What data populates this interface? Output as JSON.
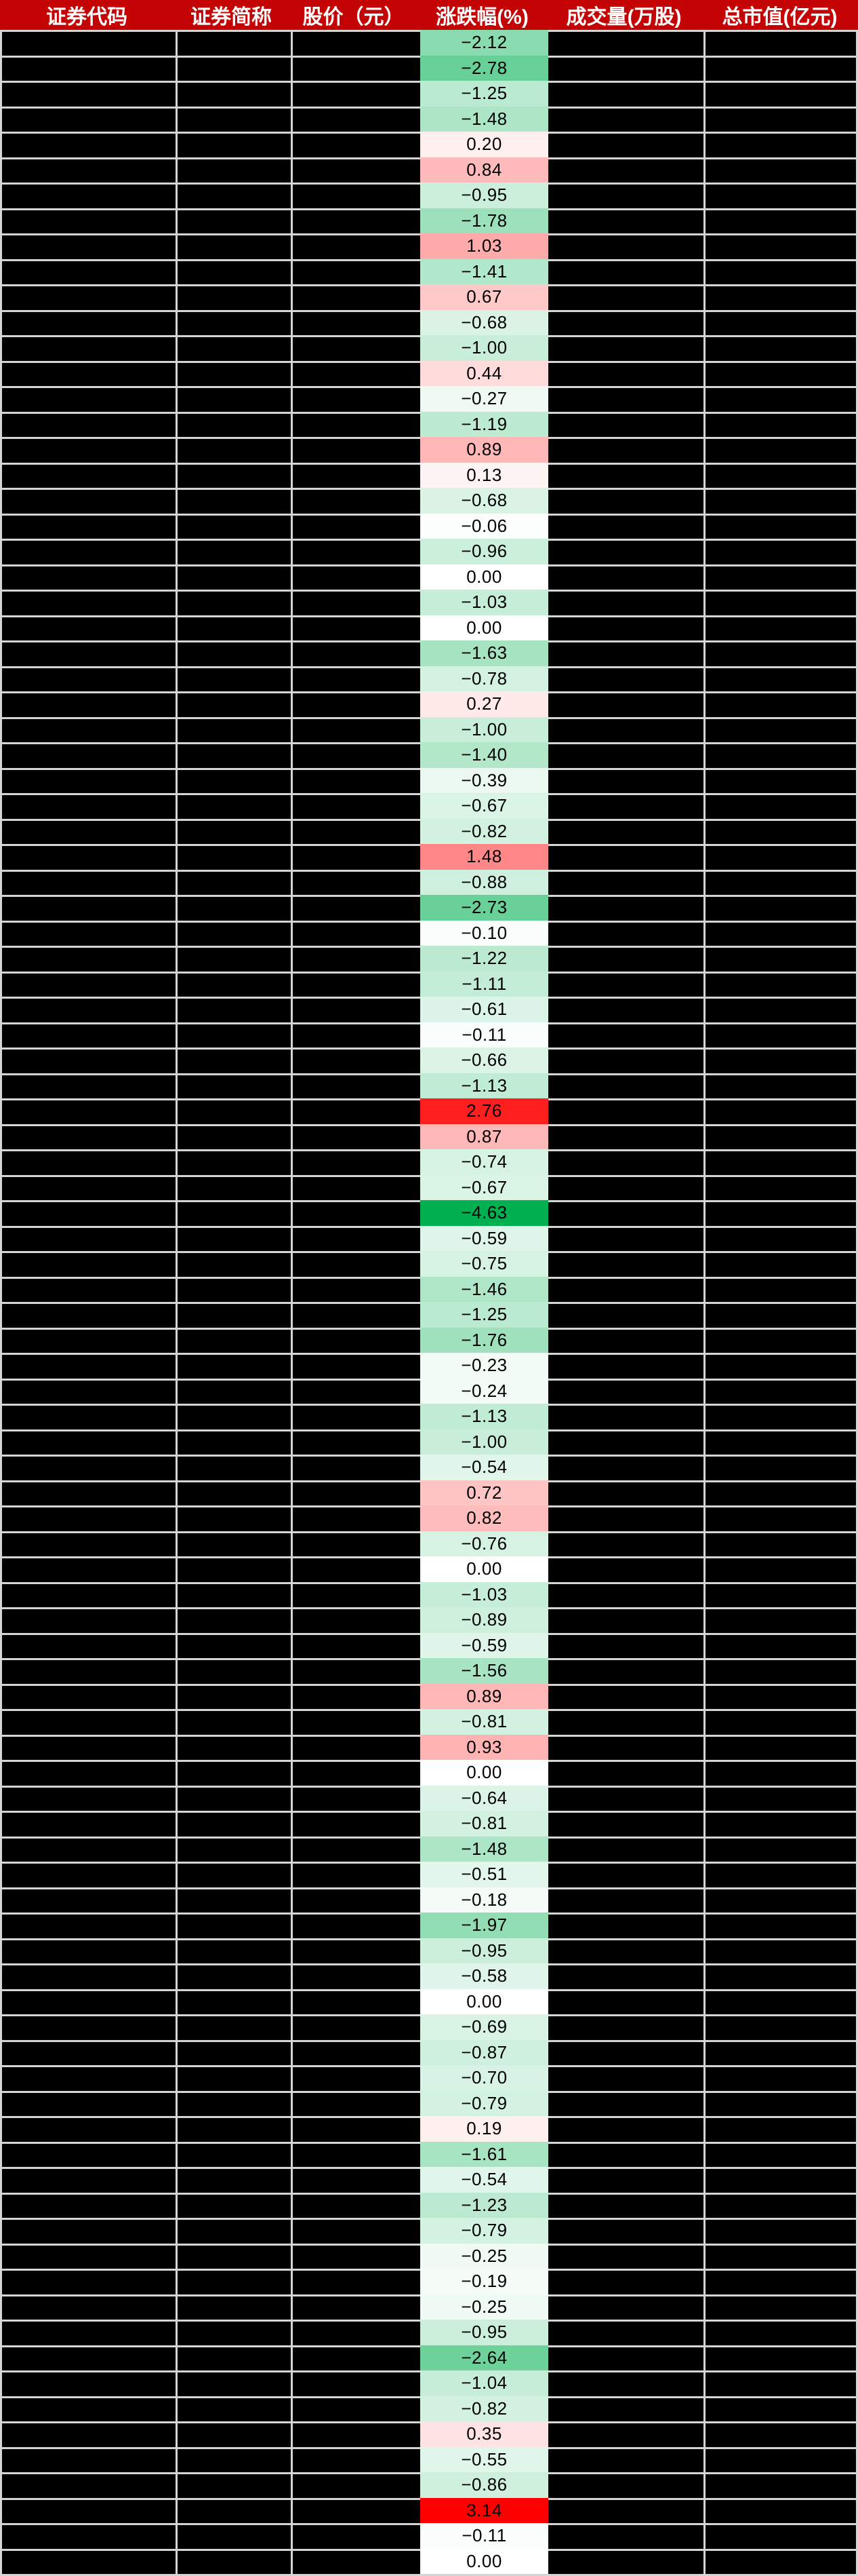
{
  "table": {
    "columns": [
      {
        "key": "code",
        "label": "证券代码"
      },
      {
        "key": "name",
        "label": "证券简称"
      },
      {
        "key": "price",
        "label": "股价（元）"
      },
      {
        "key": "pct_change",
        "label": "涨跌幅(%)"
      },
      {
        "key": "volume",
        "label": "成交量(万股)"
      },
      {
        "key": "market_cap",
        "label": "总市值(亿元)"
      }
    ],
    "redacted_columns_note": "",
    "rows_pct": [
      "-2.12",
      "-2.78",
      "-1.25",
      "-1.48",
      "0.20",
      "0.84",
      "-0.95",
      "-1.78",
      "1.03",
      "-1.41",
      "0.67",
      "-0.68",
      "-1.00",
      "0.44",
      "-0.27",
      "-1.19",
      "0.89",
      "0.13",
      "-0.68",
      "-0.06",
      "-0.96",
      "0.00",
      "-1.03",
      "0.00",
      "-1.63",
      "-0.78",
      "0.27",
      "-1.00",
      "-1.40",
      "-0.39",
      "-0.67",
      "-0.82",
      "1.48",
      "-0.88",
      "-2.73",
      "-0.10",
      "-1.22",
      "-1.11",
      "-0.61",
      "-0.11",
      "-0.66",
      "-1.13",
      "2.76",
      "0.87",
      "-0.74",
      "-0.67",
      "-4.63",
      "-0.59",
      "-0.75",
      "-1.46",
      "-1.25",
      "-1.76",
      "-0.23",
      "-0.24",
      "-1.13",
      "-1.00",
      "-0.54",
      "0.72",
      "0.82",
      "-0.76",
      "0.00",
      "-1.03",
      "-0.89",
      "-0.59",
      "-1.56",
      "0.89",
      "-0.81",
      "0.93",
      "0.00",
      "-0.64",
      "-0.81",
      "-1.48",
      "-0.51",
      "-0.18",
      "-1.97",
      "-0.95",
      "-0.58",
      "0.00",
      "-0.69",
      "-0.87",
      "-0.70",
      "-0.79",
      "0.19",
      "-1.61",
      "-0.54",
      "-1.23",
      "-0.79",
      "-0.25",
      "-0.19",
      "-0.25",
      "-0.95",
      "-2.64",
      "-1.04",
      "-0.82",
      "0.35",
      "-0.55",
      "-0.86",
      "3.14",
      "-0.11",
      "0.00"
    ],
    "colors": {
      "header_bg": "#C40404",
      "header_text": "#FFFFFF",
      "grid_line": "#D5D5D5",
      "redacted_cell_bg": "#000000",
      "value_text": "#000000",
      "scale_mid_color": "#FFFFFF",
      "scale_max_color": "#FF0000",
      "scale_min_color": "#00B050",
      "scale_max_value": 3.14,
      "scale_min_value": -4.63
    }
  }
}
